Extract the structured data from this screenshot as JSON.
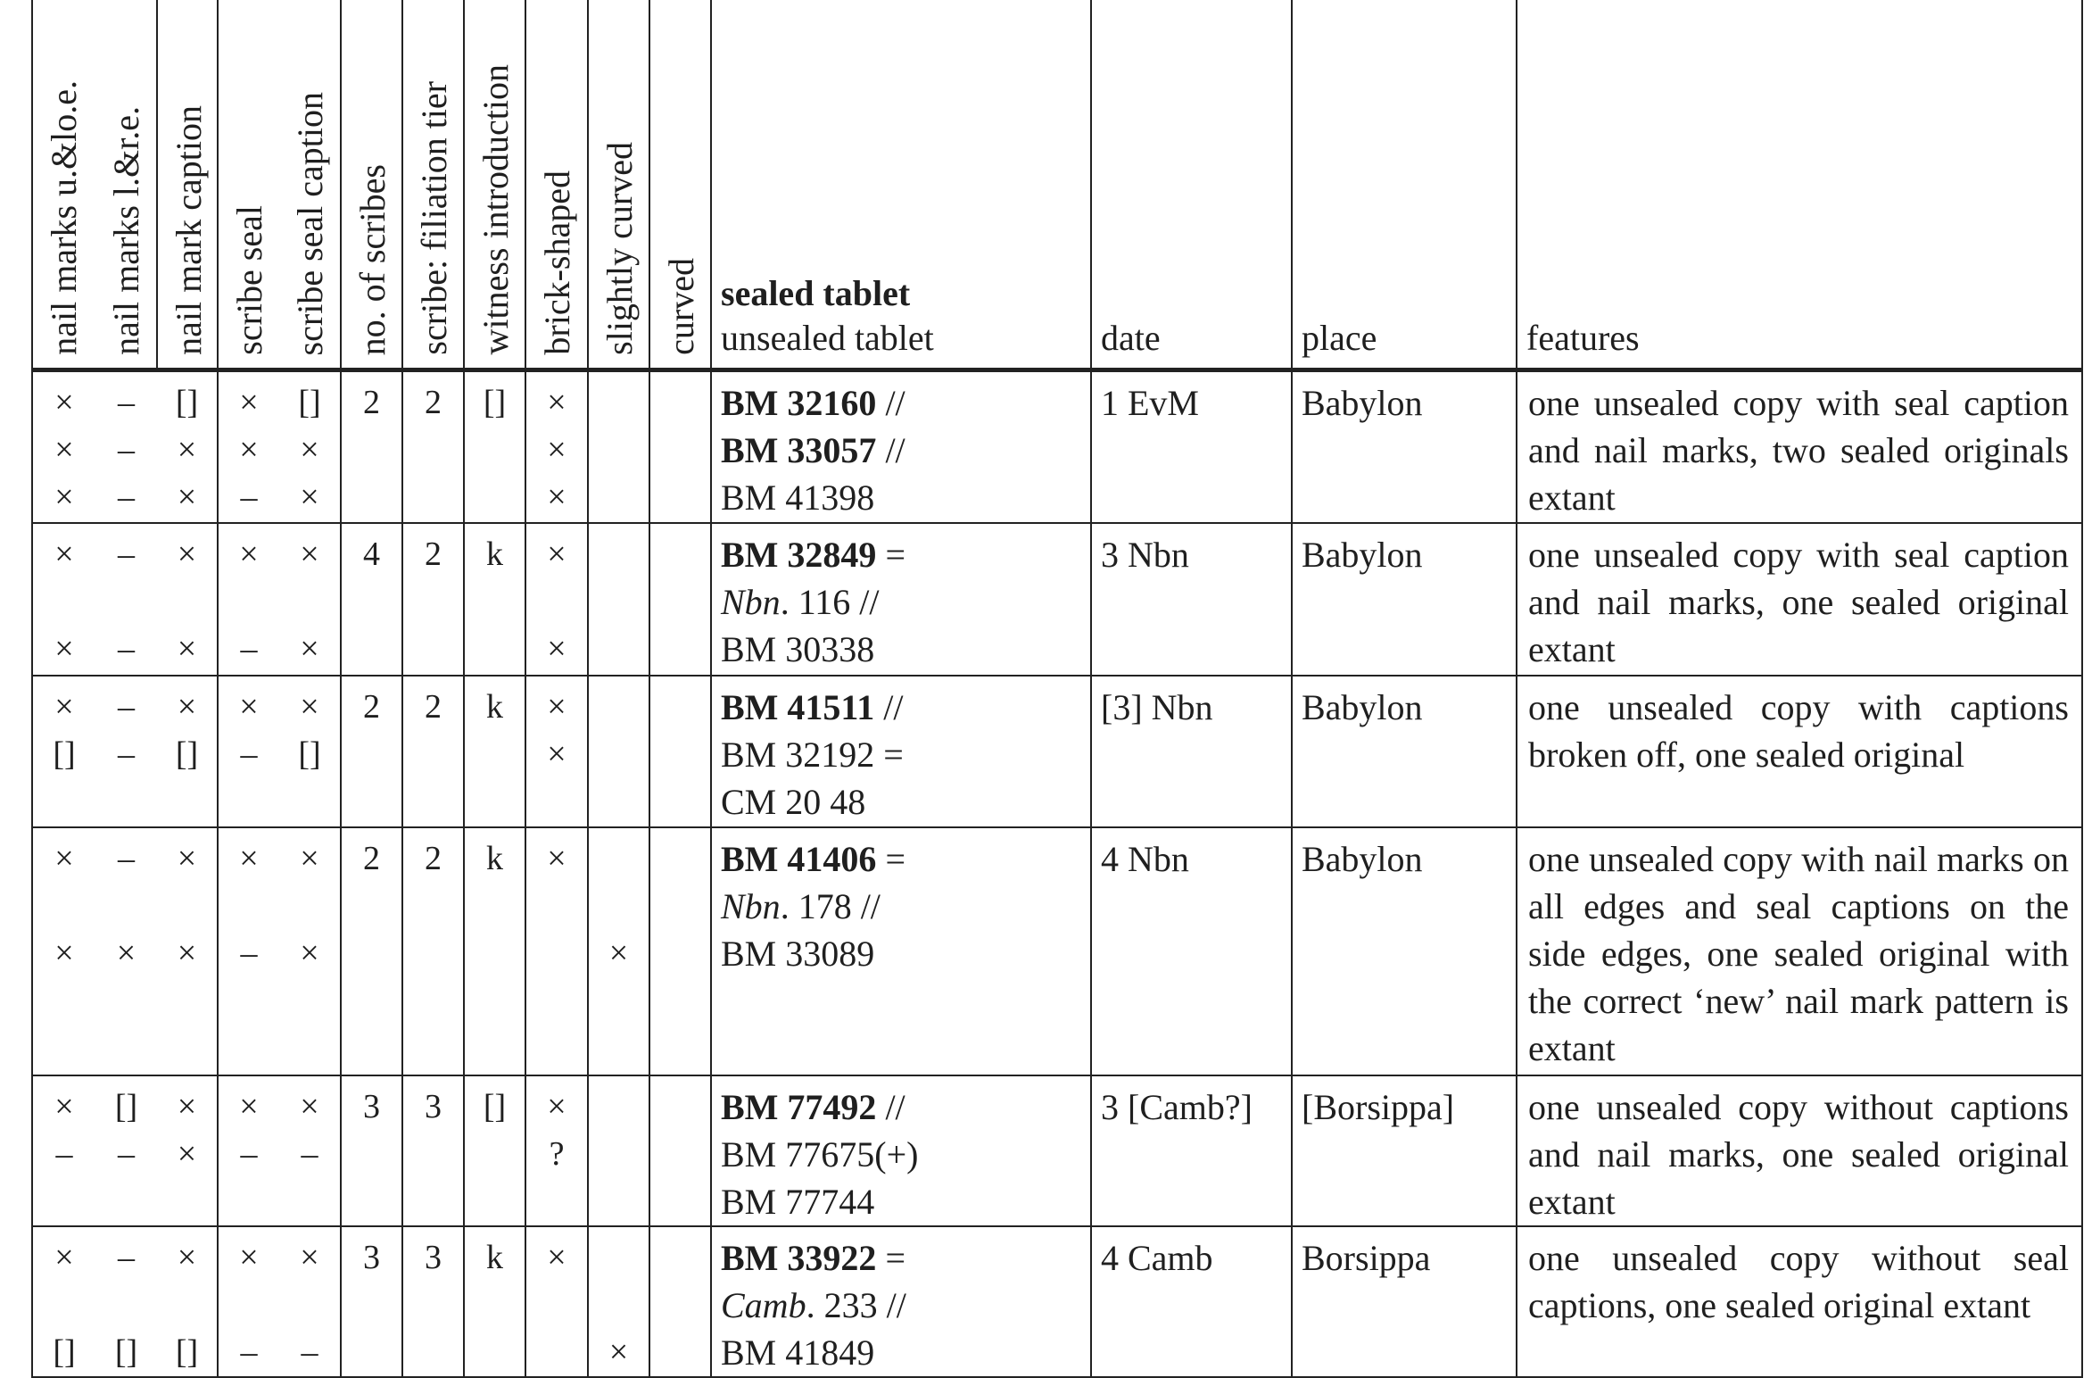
{
  "header": {
    "rotated": [
      "nail marks u.&lo.e.",
      "nail marks l.&r.e.",
      "nail mark caption",
      "scribe seal",
      "scribe seal caption",
      "no. of scribes",
      "scribe: filiation tier",
      "witness introduction",
      "brick-shaped",
      "slightly curved",
      "curved"
    ],
    "tablet_sealed": "sealed tablet",
    "tablet_unsealed": "unsealed tablet",
    "date": "date",
    "place": "place",
    "features": "features"
  },
  "rows": [
    {
      "marks": [
        [
          "×",
          "–",
          "[]",
          "×",
          "[]",
          "2",
          "2",
          "[]",
          "×",
          "",
          ""
        ],
        [
          "×",
          "–",
          "×",
          "×",
          "×",
          "",
          "",
          "",
          "×",
          "",
          ""
        ],
        [
          "×",
          "–",
          "×",
          "–",
          "×",
          "",
          "",
          "",
          "×",
          "",
          ""
        ]
      ],
      "tablets": [
        [
          {
            "t": "BM 32160",
            "s": "b"
          },
          {
            "t": " //",
            "s": ""
          }
        ],
        [
          {
            "t": "BM 33057",
            "s": "b"
          },
          {
            "t": " //",
            "s": ""
          }
        ],
        [
          {
            "t": "BM 41398",
            "s": ""
          }
        ]
      ],
      "date": "1 EvM",
      "place": "Babylon",
      "features": "one unsealed copy with seal caption and nail marks, two sealed originals extant"
    },
    {
      "marks": [
        [
          "×",
          "–",
          "×",
          "×",
          "×",
          "4",
          "2",
          "k",
          "×",
          "",
          ""
        ],
        [
          "",
          "",
          "",
          "",
          "",
          "",
          "",
          "",
          "",
          "",
          ""
        ],
        [
          "×",
          "–",
          "×",
          "–",
          "×",
          "",
          "",
          "",
          "×",
          "",
          ""
        ]
      ],
      "tablets": [
        [
          {
            "t": "BM 32849",
            "s": "b"
          },
          {
            "t": " =",
            "s": ""
          }
        ],
        [
          {
            "t": "Nbn",
            "s": "i"
          },
          {
            "t": ". 116 //",
            "s": ""
          }
        ],
        [
          {
            "t": "BM 30338",
            "s": ""
          }
        ]
      ],
      "date": "3 Nbn",
      "place": "Babylon",
      "features": "one unsealed copy with seal caption and nail marks, one sealed original extant"
    },
    {
      "marks": [
        [
          "×",
          "–",
          "×",
          "×",
          "×",
          "2",
          "2",
          "k",
          "×",
          "",
          ""
        ],
        [
          "[]",
          "–",
          "[]",
          "–",
          "[]",
          "",
          "",
          "",
          "×",
          "",
          ""
        ]
      ],
      "tablets": [
        [
          {
            "t": "BM 41511",
            "s": "b"
          },
          {
            "t": " //",
            "s": ""
          }
        ],
        [
          {
            "t": "BM 32192 =",
            "s": ""
          }
        ],
        [
          {
            "t": "CM 20 48",
            "s": ""
          }
        ]
      ],
      "date": "[3] Nbn",
      "place": "Babylon",
      "features": "one unsealed copy with captions broken off, one sealed original"
    },
    {
      "marks": [
        [
          "×",
          "–",
          "×",
          "×",
          "×",
          "2",
          "2",
          "k",
          "×",
          "",
          ""
        ],
        [
          "",
          "",
          "",
          "",
          "",
          "",
          "",
          "",
          "",
          "",
          ""
        ],
        [
          "×",
          "×",
          "×",
          "–",
          "×",
          "",
          "",
          "",
          "",
          "×",
          ""
        ]
      ],
      "tablets": [
        [
          {
            "t": "BM 41406",
            "s": "b"
          },
          {
            "t": " =",
            "s": ""
          }
        ],
        [
          {
            "t": "Nbn",
            "s": "i"
          },
          {
            "t": ". 178 //",
            "s": ""
          }
        ],
        [
          {
            "t": "BM 33089",
            "s": ""
          }
        ]
      ],
      "date": "4 Nbn",
      "place": "Babylon",
      "features": "one unsealed copy with nail marks on all edges and seal captions on the side edges, one sealed original with the correct ‘new’ nail mark pattern is extant"
    },
    {
      "marks": [
        [
          "×",
          "[]",
          "×",
          "×",
          "×",
          "3",
          "3",
          "[]",
          "×",
          "",
          ""
        ],
        [
          "–",
          "–",
          "×",
          "–",
          "–",
          "",
          "",
          "",
          "?",
          "",
          ""
        ]
      ],
      "tablets": [
        [
          {
            "t": "BM 77492",
            "s": "b"
          },
          {
            "t": " //",
            "s": ""
          }
        ],
        [
          {
            "t": "BM 77675(+)",
            "s": ""
          }
        ],
        [
          {
            "t": "BM 77744",
            "s": ""
          }
        ]
      ],
      "date": "3 [Camb?]",
      "place": "[Borsippa]",
      "features": "one unsealed copy without captions and nail marks, one sealed original extant"
    },
    {
      "marks": [
        [
          "×",
          "–",
          "×",
          "×",
          "×",
          "3",
          "3",
          "k",
          "×",
          "",
          ""
        ],
        [
          "",
          "",
          "",
          "",
          "",
          "",
          "",
          "",
          "",
          "",
          ""
        ],
        [
          "[]",
          "[]",
          "[]",
          "–",
          "–",
          "",
          "",
          "",
          "",
          "×",
          ""
        ]
      ],
      "tablets": [
        [
          {
            "t": "BM 33922",
            "s": "b"
          },
          {
            "t": " =",
            "s": ""
          }
        ],
        [
          {
            "t": "Camb",
            "s": "i"
          },
          {
            "t": ". 233 //",
            "s": ""
          }
        ],
        [
          {
            "t": "BM 41849",
            "s": ""
          }
        ]
      ],
      "date": "4 Camb",
      "place": "Borsippa",
      "features": "one unsealed copy without seal captions, one sealed original extant"
    }
  ]
}
